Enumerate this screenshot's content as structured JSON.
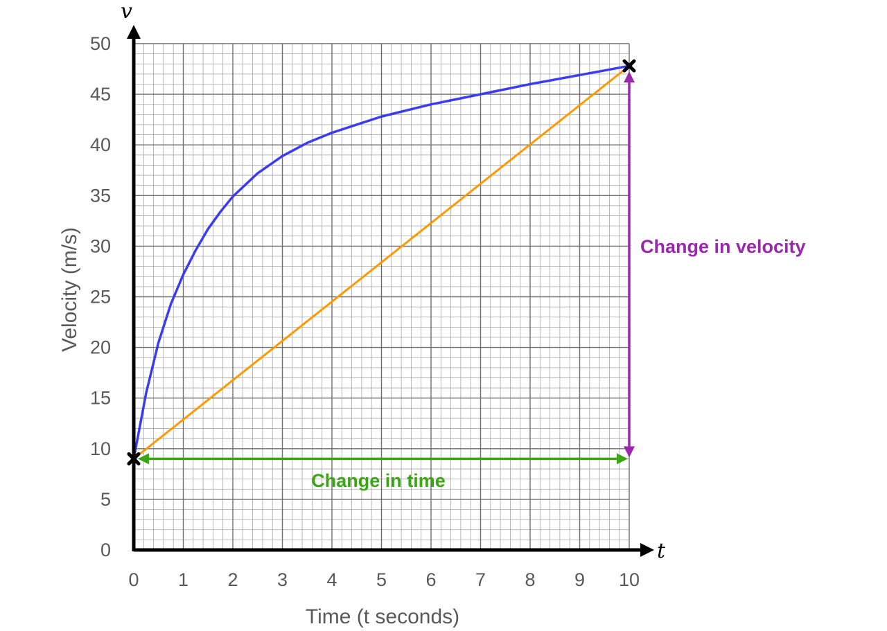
{
  "chart_data": {
    "type": "line",
    "xlabel": "Time (t seconds)",
    "ylabel": "Velocity (m/s)",
    "x_axis_symbol": "t",
    "y_axis_symbol": "v",
    "xlim": [
      0,
      10
    ],
    "ylim": [
      0,
      50
    ],
    "x_ticks": [
      "0",
      "1",
      "2",
      "3",
      "4",
      "5",
      "6",
      "7",
      "8",
      "9",
      "10"
    ],
    "y_ticks": [
      "0",
      "5",
      "10",
      "15",
      "20",
      "25",
      "30",
      "35",
      "40",
      "45",
      "50"
    ],
    "grid": true,
    "grid_minor_step": 0.2,
    "grid_minor_step_y": 1,
    "series": [
      {
        "color": "#3b3bf0",
        "x": [
          0,
          0.25,
          0.5,
          0.75,
          1,
          1.25,
          1.5,
          1.75,
          2,
          2.5,
          3,
          3.5,
          4,
          4.5,
          5,
          6,
          7,
          8,
          9,
          10
        ],
        "y": [
          9,
          15.5,
          20.5,
          24.3,
          27.2,
          29.6,
          31.7,
          33.4,
          34.9,
          37.2,
          38.9,
          40.2,
          41.2,
          42.0,
          42.8,
          44.0,
          45.0,
          46.0,
          46.9,
          47.8
        ]
      },
      {
        "color": "#ff9900",
        "x": [
          0,
          10
        ],
        "y": [
          9,
          47.8
        ]
      }
    ],
    "points": [
      {
        "x": 0,
        "y": 9,
        "marker": "x"
      },
      {
        "x": 10,
        "y": 47.8,
        "marker": "x"
      }
    ],
    "annotations": [
      {
        "text": "Change in velocity",
        "color": "#9b27af",
        "arrow": {
          "from": [
            10,
            9
          ],
          "to": [
            10,
            47.8
          ]
        }
      },
      {
        "text": "Change in time",
        "color": "#3aa614",
        "arrow": {
          "from": [
            0,
            9
          ],
          "to": [
            10,
            9
          ]
        }
      }
    ]
  }
}
